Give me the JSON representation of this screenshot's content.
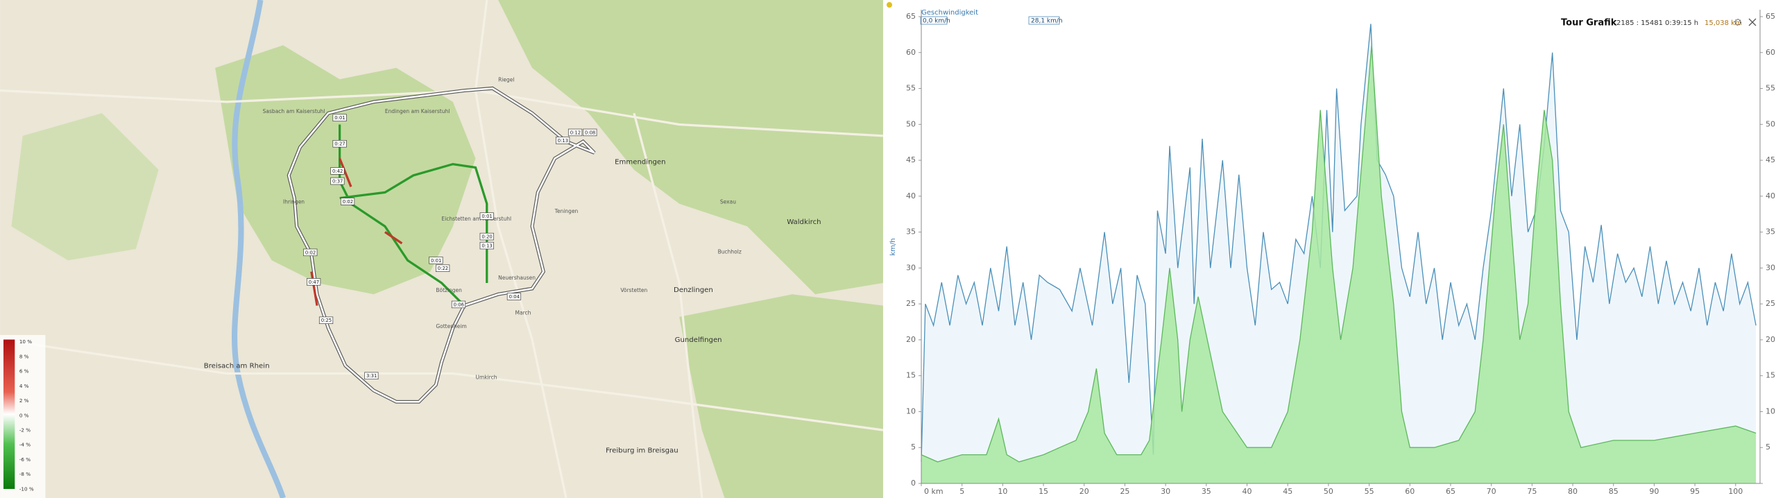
{
  "map": {
    "places": [
      "Breisach am Rhein",
      "Emmendingen",
      "Denzlingen",
      "Gundelfingen",
      "Freiburg im Breisgau",
      "Waldkirch",
      "Endingen am Kaiserstuhl",
      "Ihringen",
      "Bötzingen",
      "Eichstetten am Kaiserstuhl",
      "Teningen",
      "Riegel",
      "Sasbach am Kaiserstuhl",
      "Neuershausen",
      "Umkirch",
      "Gottenheim",
      "March",
      "Vörstetten",
      "Buchholz",
      "Sexau"
    ],
    "route_times": [
      "0:01",
      "0:27",
      "0:42",
      "0:37",
      "0:02",
      "0:02",
      "0:47",
      "0:25",
      "0:01",
      "0:20",
      "0:13",
      "0:01",
      "0:22",
      "0:06",
      "0:04",
      "3:31",
      "0:13",
      "0:12",
      "0:08"
    ],
    "legend_ticks": [
      "10 %",
      "8 %",
      "6 %",
      "4 %",
      "2 %",
      "0 %",
      "-2 %",
      "-4 %",
      "-6 %",
      "-8 %",
      "-10 %"
    ]
  },
  "chart_data": {
    "type": "line",
    "title": "Tour Grafik",
    "stats": [
      "2185 : 15481",
      "0:39:15 h",
      "15,038 km"
    ],
    "ylabel": "km/h",
    "readouts": [
      "0,0 km/h",
      "28,1 km/h"
    ],
    "xlim": [
      0,
      103
    ],
    "ylim": [
      0,
      65
    ],
    "xticks": [
      {
        "value": 0,
        "label": "0 km"
      },
      5,
      10,
      15,
      20,
      25,
      30,
      35,
      40,
      45,
      50,
      55,
      60,
      65,
      70,
      75,
      80,
      85,
      90,
      95,
      100
    ],
    "yticks": [
      0,
      5,
      10,
      15,
      20,
      25,
      30,
      35,
      40,
      45,
      50,
      55,
      60,
      65
    ],
    "series": [
      {
        "name": "Geschwindigkeit",
        "color": "#4a8fb8",
        "x": [
          0,
          0.5,
          1.5,
          2.5,
          3.5,
          4.5,
          5.5,
          6.5,
          7.5,
          8.5,
          9.5,
          10.5,
          11.5,
          12.5,
          13.5,
          14.5,
          15.5,
          17,
          18.5,
          19.5,
          21,
          22.5,
          23.5,
          24.5,
          25.5,
          26.5,
          27.5,
          28.5,
          29,
          30,
          30.5,
          31.5,
          33,
          33.5,
          34.5,
          35.5,
          37,
          38,
          39,
          40,
          41,
          42,
          43,
          44,
          45,
          46,
          47,
          48,
          49,
          49.8,
          50.5,
          51,
          52,
          53.5,
          54,
          55.2,
          56,
          57,
          58,
          59,
          60,
          61,
          62,
          63,
          64,
          65,
          66,
          67,
          68,
          69,
          70,
          71.5,
          72.5,
          73.5,
          74.5,
          75.5,
          76.5,
          77.5,
          78.5,
          79.5,
          80.5,
          81.5,
          82.5,
          83.5,
          84.5,
          85.5,
          86.5,
          87.5,
          88.5,
          89.5,
          90.5,
          91.5,
          92.5,
          93.5,
          94.5,
          95.5,
          96.5,
          97.5,
          98.5,
          99.5,
          100.5,
          101.5,
          102.5
        ],
        "values": [
          3,
          25,
          22,
          28,
          22,
          29,
          25,
          28,
          22,
          30,
          24,
          33,
          22,
          28,
          20,
          29,
          28,
          27,
          24,
          30,
          22,
          35,
          25,
          30,
          14,
          29,
          25,
          4,
          38,
          32,
          47,
          30,
          44,
          25,
          48,
          30,
          45,
          30,
          43,
          30,
          22,
          35,
          27,
          28,
          25,
          34,
          32,
          40,
          30,
          52,
          35,
          55,
          38,
          40,
          50,
          64,
          45,
          43,
          40,
          30,
          26,
          35,
          25,
          30,
          20,
          28,
          22,
          25,
          20,
          30,
          38,
          55,
          40,
          50,
          35,
          38,
          47,
          60,
          38,
          35,
          20,
          33,
          28,
          36,
          25,
          32,
          28,
          30,
          26,
          33,
          25,
          31,
          25,
          28,
          24,
          30,
          22,
          28,
          24,
          32,
          25,
          28,
          22
        ]
      },
      {
        "color": "#5cb85c",
        "x": [
          0,
          2,
          5,
          8,
          9.5,
          10.5,
          12,
          15,
          17,
          19,
          20.5,
          21.5,
          22.5,
          24,
          27,
          28,
          29.5,
          30.5,
          31.5,
          32,
          33,
          34,
          35.5,
          37,
          40,
          43,
          45,
          46.5,
          48,
          49,
          50.5,
          51.5,
          53,
          54.5,
          55.3,
          56.5,
          58,
          59,
          60,
          63,
          66,
          68,
          69,
          70.5,
          71.5,
          72.5,
          73.5,
          74.5,
          75.5,
          76.5,
          77.5,
          78.5,
          79.5,
          81,
          85,
          90,
          95,
          100,
          102.5
        ],
        "values": [
          4,
          3,
          4,
          4,
          9,
          4,
          3,
          4,
          5,
          6,
          10,
          16,
          7,
          4,
          4,
          6,
          20,
          30,
          20,
          10,
          20,
          26,
          18,
          10,
          5,
          5,
          10,
          20,
          35,
          52,
          30,
          20,
          30,
          50,
          61,
          40,
          25,
          10,
          5,
          5,
          6,
          10,
          20,
          40,
          50,
          35,
          20,
          25,
          40,
          52,
          45,
          25,
          10,
          5,
          6,
          6,
          7,
          8,
          7
        ]
      }
    ]
  }
}
